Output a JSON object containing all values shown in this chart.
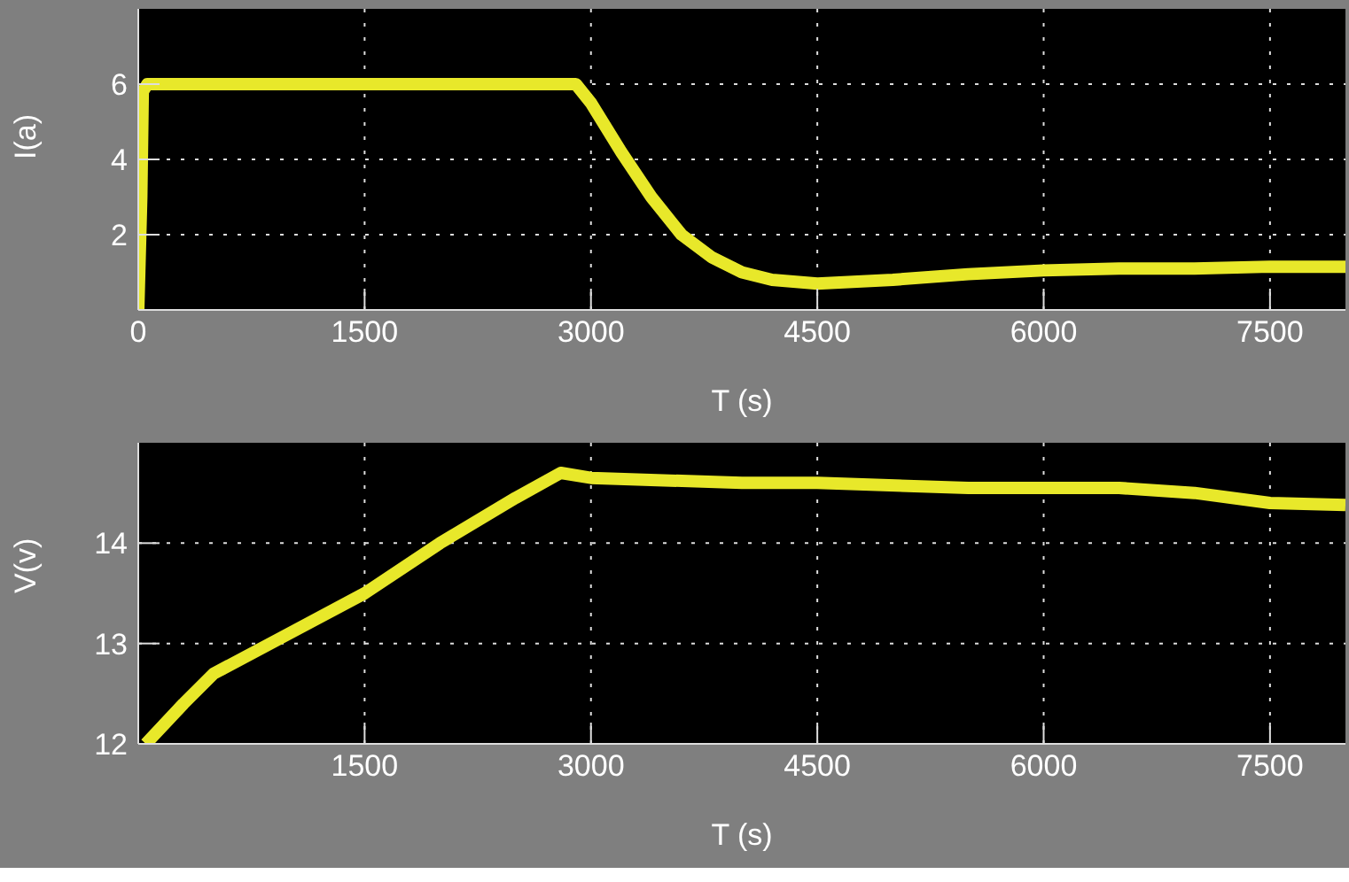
{
  "chart_data": [
    {
      "type": "line",
      "xlabel": "T (s)",
      "ylabel": "I(a)",
      "xlim": [
        0,
        8000
      ],
      "xticks": [
        0,
        1500,
        3000,
        4500,
        6000,
        7500
      ],
      "ylim": [
        0,
        8
      ],
      "yticks": [
        2,
        4,
        6
      ],
      "grid": true,
      "marker": "none",
      "line_style": "solid",
      "series": [
        {
          "color": "#e8e82a",
          "x": [
            0,
            20,
            30,
            60,
            1500,
            2900,
            3000,
            3200,
            3400,
            3600,
            3800,
            4000,
            4200,
            4500,
            5000,
            5500,
            6000,
            6500,
            7000,
            7500,
            8000
          ],
          "values": [
            0,
            3,
            5.8,
            6,
            6,
            6,
            5.5,
            4.2,
            3,
            2,
            1.4,
            1,
            0.8,
            0.7,
            0.8,
            0.95,
            1.05,
            1.1,
            1.1,
            1.15,
            1.15
          ]
        }
      ]
    },
    {
      "type": "line",
      "xlabel": "T (s)",
      "ylabel": "V(v)",
      "xlim": [
        0,
        8000
      ],
      "xticks": [
        1500,
        3000,
        4500,
        6000,
        7500
      ],
      "ylim": [
        12,
        15
      ],
      "yticks": [
        12,
        13,
        14
      ],
      "grid": true,
      "marker": "none",
      "line_style": "solid",
      "series": [
        {
          "color": "#e8e82a",
          "x": [
            50,
            300,
            500,
            1000,
            1500,
            2000,
            2500,
            2800,
            3000,
            4000,
            4500,
            5500,
            6500,
            7000,
            7500,
            8000
          ],
          "values": [
            12,
            12.4,
            12.7,
            13.1,
            13.5,
            14,
            14.45,
            14.7,
            14.65,
            14.6,
            14.6,
            14.55,
            14.55,
            14.5,
            14.4,
            14.38
          ]
        }
      ]
    }
  ]
}
